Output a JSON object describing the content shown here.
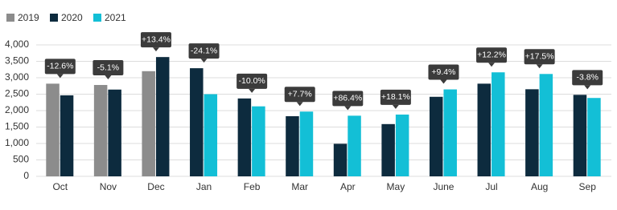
{
  "chart_data": {
    "type": "bar",
    "categories": [
      "Oct",
      "Nov",
      "Dec",
      "Jan",
      "Feb",
      "Mar",
      "Apr",
      "May",
      "June",
      "Jul",
      "Aug",
      "Sep"
    ],
    "series": [
      {
        "name": "2019",
        "color": "#8c8c8c",
        "values": [
          2820,
          2780,
          3200,
          null,
          null,
          null,
          null,
          null,
          null,
          null,
          null,
          null
        ]
      },
      {
        "name": "2020",
        "color": "#0d2b3e",
        "values": [
          2465,
          2640,
          3630,
          3290,
          2370,
          1830,
          990,
          1590,
          2420,
          2820,
          2650,
          2480
        ]
      },
      {
        "name": "2021",
        "color": "#13bfd6",
        "values": [
          null,
          null,
          null,
          2500,
          2130,
          1970,
          1845,
          1880,
          2645,
          3165,
          3115,
          2385
        ]
      }
    ],
    "annotations": [
      "-12.6%",
      "-5.1%",
      "+13.4%",
      "-24.1%",
      "-10.0%",
      "+7.7%",
      "+86.4%",
      "+18.1%",
      "+9.4%",
      "+12.2%",
      "+17.5%",
      "-3.8%"
    ],
    "ylim": [
      0,
      4000
    ],
    "yticks": [
      0,
      500,
      {
        "value": 1000,
        "label": "1,000"
      },
      {
        "value": 1500,
        "label": "1,500"
      },
      {
        "value": 2000,
        "label": "2,000"
      },
      {
        "value": 2500,
        "label": "2,500"
      },
      {
        "value": 3000,
        "label": "3,000"
      },
      {
        "value": 3500,
        "label": "3,500"
      },
      {
        "value": 4000,
        "label": "4,000"
      }
    ],
    "grid": true
  }
}
